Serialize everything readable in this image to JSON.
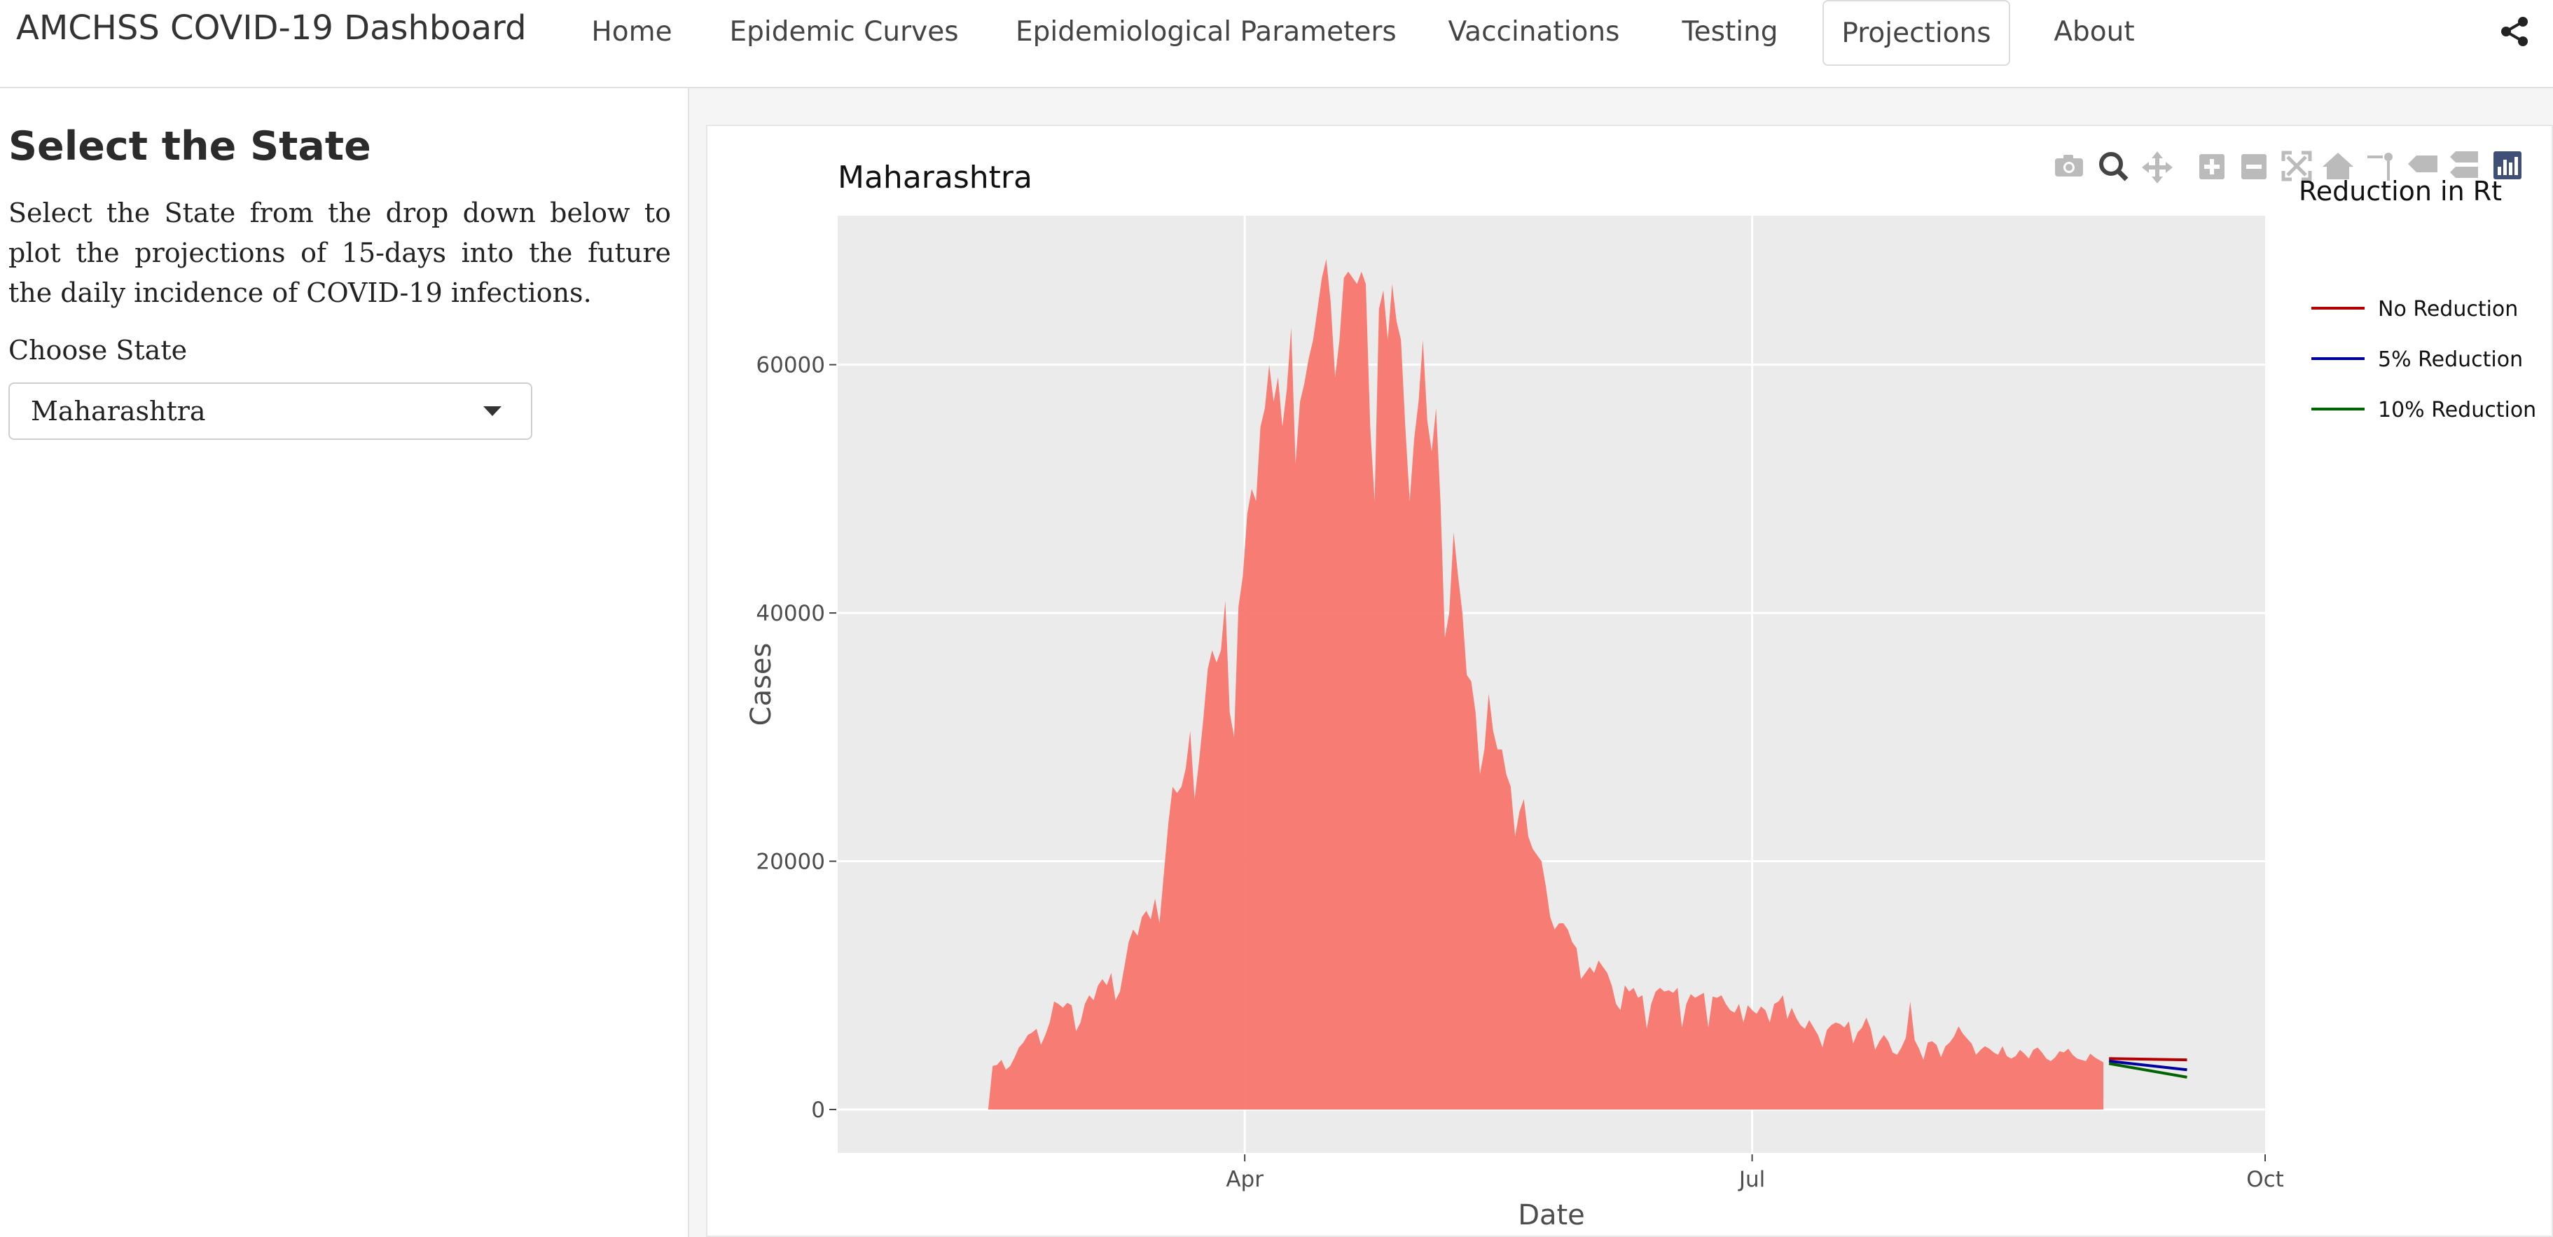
{
  "navbar": {
    "brand": "AMCHSS COVID-19 Dashboard",
    "items": [
      {
        "label": "Home"
      },
      {
        "label": "Epidemic Curves"
      },
      {
        "label": "Epidemiological Parameters"
      },
      {
        "label": "Vaccinations"
      },
      {
        "label": "Testing"
      },
      {
        "label": "Projections",
        "active": true
      },
      {
        "label": "About"
      }
    ]
  },
  "sidebar": {
    "title": "Select the State",
    "description": "Select the State from the drop down below to plot the projections of 15-days into the future the daily incidence of COVID-19 infections.",
    "choose_label": "Choose State",
    "selected_state": "Maharashtra"
  },
  "modebar": {
    "icons": [
      "camera-icon",
      "zoom-icon",
      "pan-icon",
      "zoom-in-icon",
      "zoom-out-icon",
      "autoscale-icon",
      "home-icon",
      "spike-lines-icon",
      "hover-closest-icon",
      "hover-compare-icon",
      "plotly-logo-icon"
    ]
  },
  "colors": {
    "area_fill": "#f8766d",
    "plot_bg": "#ebebeb",
    "no_reduction": "#b30000",
    "five_pct": "#0000a0",
    "ten_pct": "#006400"
  },
  "chart_data": {
    "type": "area",
    "title": "Maharashtra",
    "xlabel": "Date",
    "ylabel": "Cases",
    "x_ticks": [
      "Apr",
      "Jul",
      "Oct"
    ],
    "y_ticks": [
      0,
      20000,
      40000,
      60000
    ],
    "ylim": [
      -3500,
      72000
    ],
    "grid": true,
    "legend": {
      "title": "Reduction in Rt",
      "placement": "right",
      "entries": [
        "No Reduction",
        "5% Reduction",
        "10% Reduction"
      ]
    },
    "series": [
      {
        "kind": "area",
        "x_start": "2021-02-14",
        "x_end": "2021-09-02",
        "values": [
          0,
          3500,
          3600,
          4000,
          3200,
          3500,
          4200,
          5000,
          5400,
          6000,
          6200,
          6500,
          5200,
          6000,
          7000,
          8700,
          8500,
          8200,
          8600,
          8400,
          6300,
          7000,
          8500,
          9200,
          8800,
          10000,
          10500,
          10000,
          11000,
          8800,
          9500,
          11500,
          13500,
          14500,
          14000,
          15500,
          16000,
          15300,
          17000,
          15000,
          19000,
          23000,
          26000,
          25500,
          26000,
          27500,
          30500,
          25000,
          28000,
          31500,
          35500,
          37000,
          36000,
          37000,
          41000,
          32000,
          30000,
          40500,
          43000,
          48000,
          50000,
          49000,
          55000,
          56500,
          60000,
          57000,
          59000,
          55000,
          58000,
          63000,
          52000,
          57000,
          58500,
          60500,
          62000,
          64500,
          67000,
          68500,
          65000,
          59000,
          62000,
          67000,
          67500,
          67000,
          66500,
          67500,
          66500,
          55000,
          49000,
          64500,
          66000,
          62000,
          66500,
          63500,
          62000,
          55000,
          49000,
          54000,
          57000,
          62000,
          55500,
          53000,
          56500,
          49000,
          38000,
          40000,
          46500,
          43000,
          40000,
          35000,
          34500,
          32000,
          27000,
          29000,
          33500,
          30500,
          29000,
          29000,
          27000,
          26000,
          22000,
          24000,
          25000,
          22000,
          21000,
          20500,
          20000,
          18000,
          15500,
          14500,
          15000,
          15000,
          14500,
          13500,
          13000,
          10500,
          11000,
          11500,
          11000,
          12000,
          11500,
          11000,
          10000,
          8500,
          8000,
          10000,
          9500,
          9800,
          9000,
          9200,
          6500,
          8500,
          9500,
          9800,
          9500,
          9600,
          9400,
          9800,
          6600,
          8500,
          9300,
          9000,
          9200,
          9400,
          6600,
          9100,
          9000,
          9200,
          8500,
          8000,
          7800,
          8500,
          7000,
          8400,
          8000,
          7700,
          8300,
          8000,
          7000,
          8500,
          8700,
          9200,
          7300,
          8200,
          7400,
          6800,
          6500,
          7200,
          6600,
          6000,
          5000,
          6400,
          6800,
          7000,
          6900,
          6600,
          7100,
          5300,
          6200,
          6600,
          7400,
          6500,
          4800,
          5500,
          6000,
          5500,
          4600,
          4400,
          5000,
          5800,
          8700,
          5600,
          4900,
          4000,
          5400,
          5500,
          5200,
          4200,
          5100,
          5400,
          5900,
          6700,
          6100,
          5700,
          5300,
          4400,
          4800,
          5100,
          4900,
          4600,
          4400,
          5100,
          4300,
          4100,
          4300,
          4800,
          4500,
          4100,
          4800,
          5000,
          4600,
          4100,
          3900,
          4200,
          4700,
          4600,
          4900,
          4400,
          4100,
          4000,
          3900,
          4500,
          4200,
          4000,
          3800
        ]
      },
      {
        "name": "No Reduction",
        "kind": "line",
        "x": [
          "2021-09-03",
          "2021-09-17"
        ],
        "values": [
          4100,
          4000
        ]
      },
      {
        "name": "5% Reduction",
        "kind": "line",
        "x": [
          "2021-09-03",
          "2021-09-17"
        ],
        "values": [
          3900,
          3200
        ]
      },
      {
        "name": "10% Reduction",
        "kind": "line",
        "x": [
          "2021-09-03",
          "2021-09-17"
        ],
        "values": [
          3700,
          2600
        ]
      }
    ]
  }
}
